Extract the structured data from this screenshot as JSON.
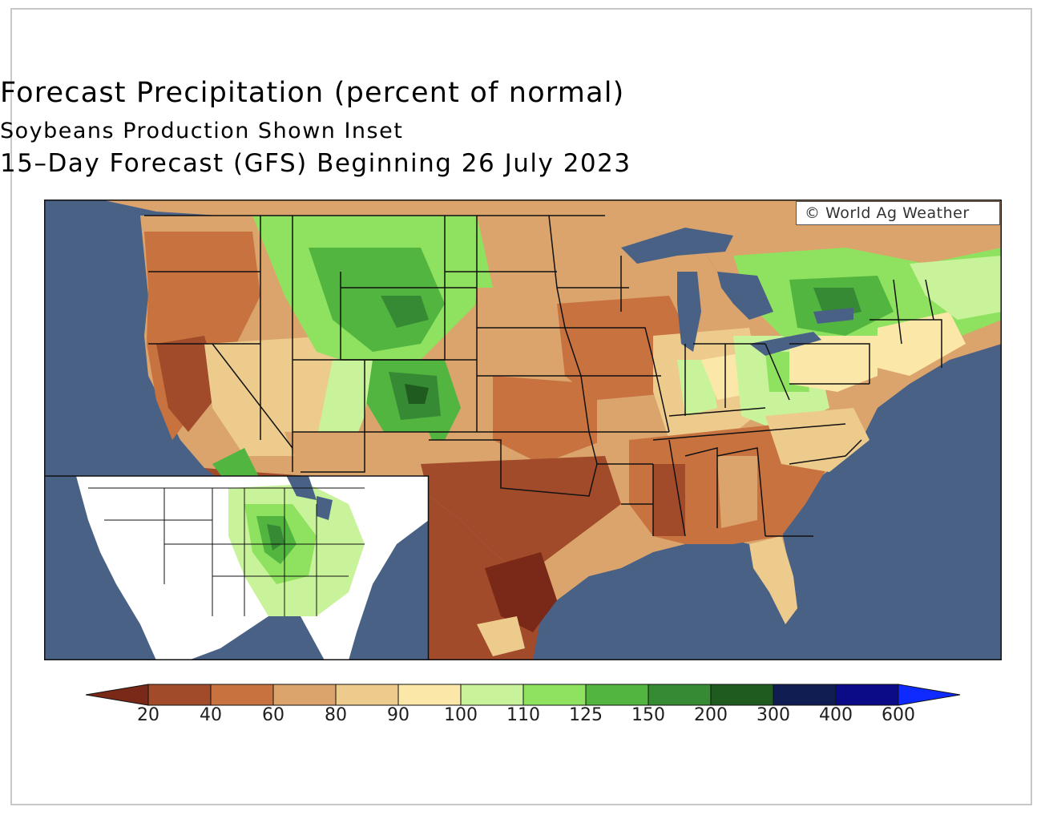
{
  "title": "Forecast Precipitation (percent of normal)",
  "subtitle": "Soybeans Production Shown Inset",
  "subtitle2": "15–Day Forecast (GFS) Beginning 26 July 2023",
  "copyright": "© World Ag Weather",
  "colors": {
    "ocean": "#4a6186",
    "c_lt20": "#7a2817",
    "c20_40": "#a14b2a",
    "c40_60": "#c7723f",
    "c60_80": "#dba46c",
    "c80_90": "#eccb8d",
    "c90_100": "#fbe8a8",
    "c100_110": "#c9f39a",
    "c110_125": "#8fe25f",
    "c125_150": "#52b540",
    "c150_200": "#368a34",
    "c200_300": "#1f5a1e",
    "c300_400": "#0f1d52",
    "c400_600": "#0b0b88",
    "c_gt600": "#0f2aff"
  },
  "legend": {
    "ticks": [
      "20",
      "40",
      "60",
      "80",
      "90",
      "100",
      "110",
      "125",
      "150",
      "200",
      "300",
      "400",
      "600"
    ]
  }
}
